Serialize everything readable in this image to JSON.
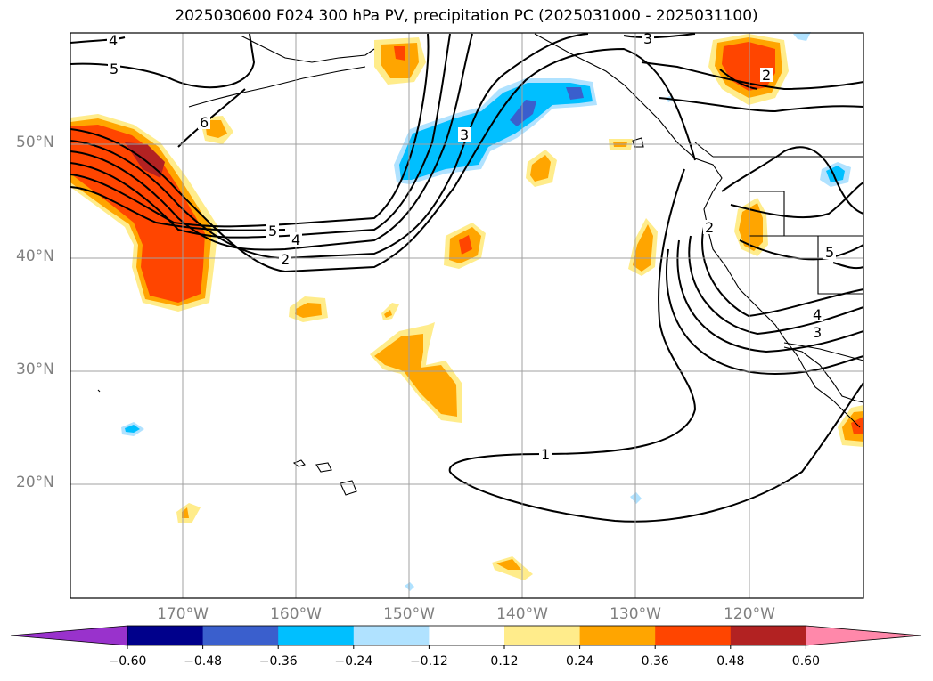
{
  "title": "2025030600 F024 300 hPa PV, precipitation PC (2025031000 - 2025031100)",
  "lat_labels": [
    "50°N",
    "40°N",
    "30°N",
    "20°N"
  ],
  "lon_labels": [
    "170°W",
    "160°W",
    "150°W",
    "140°W",
    "130°W",
    "120°W"
  ],
  "contour_labels": [
    "4",
    "5",
    "6",
    "3",
    "3",
    "2",
    "5",
    "4",
    "2",
    "2",
    "5",
    "4",
    "3",
    "1"
  ],
  "colorbar": {
    "ticks": [
      "−0.60",
      "−0.48",
      "−0.36",
      "−0.24",
      "−0.12",
      "0.12",
      "0.24",
      "0.36",
      "0.48",
      "0.60"
    ],
    "colors": [
      "#9932cc",
      "#00008b",
      "#3a5fcd",
      "#00bfff",
      "#b0e2ff",
      "#ffffff",
      "#ffec8b",
      "#ffa500",
      "#ff4500",
      "#b22222",
      "#ff88aa"
    ]
  },
  "fill_colors": {
    "pos_012": "#ffec8b",
    "pos_024": "#ffa500",
    "pos_036": "#ff4500",
    "pos_048": "#b22222",
    "neg_012": "#b0e2ff",
    "neg_024": "#00bfff",
    "neg_036": "#3a5fcd"
  }
}
